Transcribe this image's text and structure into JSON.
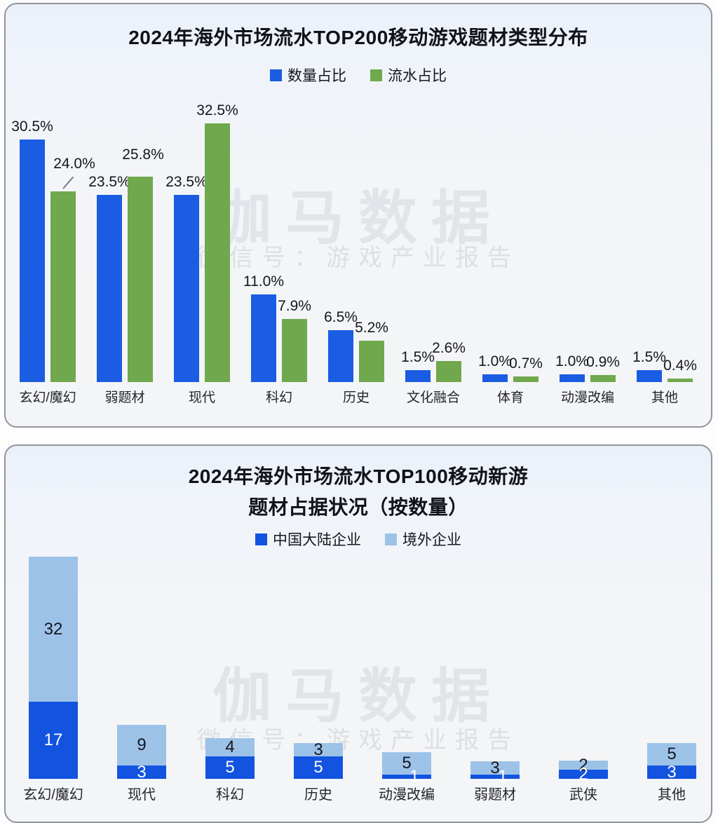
{
  "watermark": {
    "brand": "伽马数据",
    "sub": "微信号：游戏产业报告"
  },
  "chart_data": [
    {
      "type": "bar",
      "title": "2024年海外市场流水TOP200移动游戏题材类型分布",
      "categories": [
        "玄幻/魔幻",
        "弱题材",
        "现代",
        "科幻",
        "历史",
        "文化融合",
        "体育",
        "动漫改编",
        "其他"
      ],
      "series": [
        {
          "name": "数量占比",
          "color": "#1a5ce2",
          "values": [
            30.5,
            23.5,
            23.5,
            11.0,
            6.5,
            1.5,
            1.0,
            1.0,
            1.5
          ]
        },
        {
          "name": "流水占比",
          "color": "#6fa84d",
          "values": [
            24.0,
            25.8,
            32.5,
            7.9,
            5.2,
            2.6,
            0.7,
            0.9,
            0.4
          ]
        }
      ],
      "value_suffix": "%",
      "value_decimals": 1,
      "legend_position": "top",
      "grid": false,
      "ylim": [
        0,
        35
      ]
    },
    {
      "type": "bar-stacked",
      "title_lines": [
        "2024年海外市场流水TOP100移动新游",
        "题材占据状况（按数量）"
      ],
      "categories": [
        "玄幻/魔幻",
        "现代",
        "科幻",
        "历史",
        "动漫改编",
        "弱题材",
        "武侠",
        "其他"
      ],
      "series": [
        {
          "name": "中国大陆企业",
          "color": "#1254e0",
          "values": [
            17,
            3,
            5,
            5,
            1,
            1,
            2,
            3
          ]
        },
        {
          "name": "境外企业",
          "color": "#9dc2e8",
          "values": [
            32,
            9,
            4,
            3,
            5,
            3,
            2,
            5
          ]
        }
      ],
      "value_suffix": "",
      "value_decimals": 0,
      "legend_position": "top",
      "grid": false,
      "ylim": [
        0,
        50
      ]
    }
  ]
}
